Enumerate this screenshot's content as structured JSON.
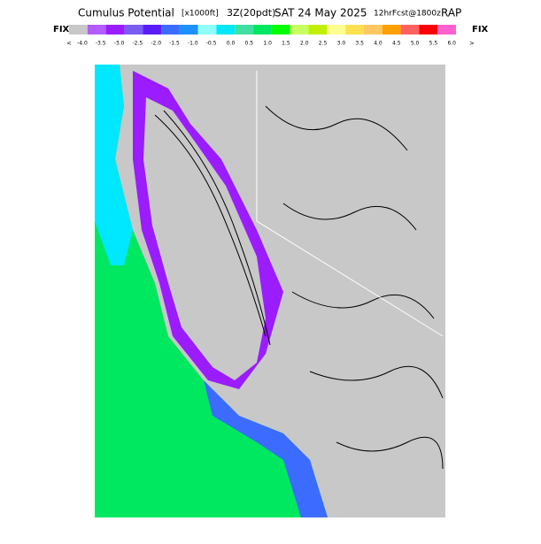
{
  "header": {
    "title": "Cumulus Potential",
    "units": "[x1000ft]",
    "valid": "3Z(20pdt)",
    "date": "SAT 24 May 2025",
    "forecast": "12hrFcst@1800z",
    "model": "RAP",
    "fix_left": "FIX",
    "fix_right": "FIX"
  },
  "legend": {
    "below": "<",
    "above": ">",
    "items": [
      {
        "label": "-4.0",
        "color": "#c8c8c8"
      },
      {
        "label": "-3.5",
        "color": "#b45cff"
      },
      {
        "label": "-3.0",
        "color": "#9a1cff"
      },
      {
        "label": "-2.5",
        "color": "#7b5cf0"
      },
      {
        "label": "-2.0",
        "color": "#5a1cff"
      },
      {
        "label": "-1.5",
        "color": "#3c6cff"
      },
      {
        "label": "-1.0",
        "color": "#1e90ff"
      },
      {
        "label": "-0.5",
        "color": "#90ffff"
      },
      {
        "label": "0.0",
        "color": "#00e8ff"
      },
      {
        "label": "0.5",
        "color": "#40e0a0"
      },
      {
        "label": "1.0",
        "color": "#00e860"
      },
      {
        "label": "1.5",
        "color": "#00ff00"
      },
      {
        "label": "2.0",
        "color": "#c8ff60"
      },
      {
        "label": "2.5",
        "color": "#c0f000"
      },
      {
        "label": "3.0",
        "color": "#ffff90"
      },
      {
        "label": "3.5",
        "color": "#ffe050"
      },
      {
        "label": "4.0",
        "color": "#ffc860"
      },
      {
        "label": "4.5",
        "color": "#ffa000"
      },
      {
        "label": "5.0",
        "color": "#ff6060"
      },
      {
        "label": "5.5",
        "color": "#ff0000"
      },
      {
        "label": "6.0",
        "color": "#ff60d0"
      }
    ]
  }
}
